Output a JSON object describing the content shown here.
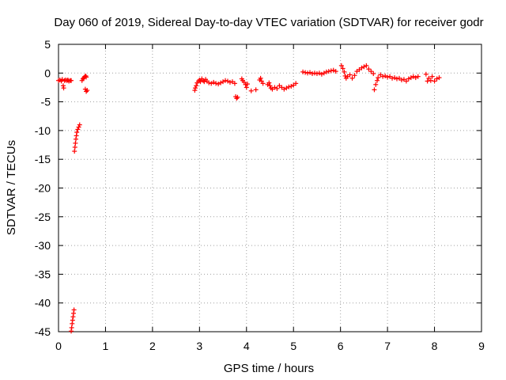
{
  "chart_data": {
    "type": "scatter",
    "title": "Day 060 of 2019, Sidereal Day-to-day VTEC variation (SDTVAR) for receiver godr",
    "xlabel": "GPS time / hours",
    "ylabel": "SDTVAR / TECUs",
    "xlim": [
      0,
      9
    ],
    "ylim": [
      -45,
      5
    ],
    "xticks": [
      0,
      1,
      2,
      3,
      4,
      5,
      6,
      7,
      8,
      9
    ],
    "yticks": [
      5,
      0,
      -5,
      -10,
      -15,
      -20,
      -25,
      -30,
      -35,
      -40,
      -45
    ],
    "grid": true,
    "marker": "plus",
    "color": "#ff0000",
    "series": [
      {
        "name": "SDTVAR",
        "points": [
          [
            0.0,
            -1.3
          ],
          [
            0.03,
            -1.2
          ],
          [
            0.06,
            -1.4
          ],
          [
            0.08,
            -1.1
          ],
          [
            0.1,
            -2.2
          ],
          [
            0.11,
            -2.6
          ],
          [
            0.13,
            -1.3
          ],
          [
            0.15,
            -1.2
          ],
          [
            0.18,
            -1.3
          ],
          [
            0.2,
            -1.2
          ],
          [
            0.22,
            -1.4
          ],
          [
            0.25,
            -1.3
          ],
          [
            0.27,
            -1.3
          ],
          [
            0.27,
            -44.9
          ],
          [
            0.28,
            -44.3
          ],
          [
            0.29,
            -43.6
          ],
          [
            0.3,
            -43.0
          ],
          [
            0.31,
            -42.4
          ],
          [
            0.32,
            -41.8
          ],
          [
            0.33,
            -41.2
          ],
          [
            0.34,
            -13.6
          ],
          [
            0.35,
            -12.9
          ],
          [
            0.36,
            -12.2
          ],
          [
            0.37,
            -11.5
          ],
          [
            0.38,
            -10.9
          ],
          [
            0.39,
            -10.3
          ],
          [
            0.41,
            -9.8
          ],
          [
            0.43,
            -9.4
          ],
          [
            0.45,
            -9.0
          ],
          [
            0.5,
            -1.3
          ],
          [
            0.52,
            -1.0
          ],
          [
            0.54,
            -0.8
          ],
          [
            0.56,
            -0.6
          ],
          [
            0.58,
            -0.5
          ],
          [
            0.59,
            -0.7
          ],
          [
            0.57,
            -2.8
          ],
          [
            0.59,
            -3.2
          ],
          [
            0.61,
            -3.0
          ],
          [
            2.9,
            -3.0
          ],
          [
            2.91,
            -2.6
          ],
          [
            2.93,
            -2.2
          ],
          [
            2.95,
            -1.7
          ],
          [
            2.98,
            -1.4
          ],
          [
            3.0,
            -1.2
          ],
          [
            3.02,
            -1.5
          ],
          [
            3.05,
            -1.0
          ],
          [
            3.08,
            -1.3
          ],
          [
            3.1,
            -1.5
          ],
          [
            3.13,
            -1.1
          ],
          [
            3.16,
            -1.4
          ],
          [
            3.2,
            -1.7
          ],
          [
            3.25,
            -1.8
          ],
          [
            3.3,
            -1.6
          ],
          [
            3.35,
            -1.8
          ],
          [
            3.4,
            -1.9
          ],
          [
            3.45,
            -1.7
          ],
          [
            3.5,
            -1.5
          ],
          [
            3.55,
            -1.3
          ],
          [
            3.6,
            -1.4
          ],
          [
            3.65,
            -1.6
          ],
          [
            3.7,
            -1.5
          ],
          [
            3.75,
            -1.8
          ],
          [
            3.77,
            -4.1
          ],
          [
            3.79,
            -4.4
          ],
          [
            3.81,
            -4.2
          ],
          [
            3.9,
            -1.0
          ],
          [
            3.92,
            -1.3
          ],
          [
            3.95,
            -1.6
          ],
          [
            3.98,
            -2.0
          ],
          [
            4.0,
            -2.5
          ],
          [
            4.02,
            -1.9
          ],
          [
            4.1,
            -3.1
          ],
          [
            4.2,
            -2.9
          ],
          [
            4.28,
            -1.2
          ],
          [
            4.3,
            -0.9
          ],
          [
            4.32,
            -1.4
          ],
          [
            4.35,
            -1.8
          ],
          [
            4.45,
            -2.0
          ],
          [
            4.48,
            -1.7
          ],
          [
            4.5,
            -2.2
          ],
          [
            4.52,
            -2.6
          ],
          [
            4.55,
            -2.8
          ],
          [
            4.6,
            -2.5
          ],
          [
            4.65,
            -2.7
          ],
          [
            4.7,
            -2.2
          ],
          [
            4.75,
            -2.5
          ],
          [
            4.8,
            -2.8
          ],
          [
            4.85,
            -2.6
          ],
          [
            4.9,
            -2.4
          ],
          [
            4.95,
            -2.3
          ],
          [
            5.0,
            -2.1
          ],
          [
            5.05,
            -1.8
          ],
          [
            5.2,
            0.2
          ],
          [
            5.25,
            0.1
          ],
          [
            5.3,
            0.0
          ],
          [
            5.35,
            0.1
          ],
          [
            5.4,
            -0.1
          ],
          [
            5.45,
            0.0
          ],
          [
            5.5,
            -0.1
          ],
          [
            5.55,
            0.0
          ],
          [
            5.6,
            -0.2
          ],
          [
            5.65,
            0.0
          ],
          [
            5.7,
            0.2
          ],
          [
            5.75,
            0.3
          ],
          [
            5.8,
            0.4
          ],
          [
            5.85,
            0.5
          ],
          [
            5.9,
            0.3
          ],
          [
            6.02,
            1.3
          ],
          [
            6.05,
            0.8
          ],
          [
            6.08,
            0.2
          ],
          [
            6.1,
            -0.5
          ],
          [
            6.12,
            -0.9
          ],
          [
            6.15,
            -0.6
          ],
          [
            6.2,
            -0.3
          ],
          [
            6.25,
            -0.9
          ],
          [
            6.3,
            -0.4
          ],
          [
            6.35,
            0.3
          ],
          [
            6.4,
            0.6
          ],
          [
            6.45,
            0.9
          ],
          [
            6.5,
            1.1
          ],
          [
            6.55,
            1.3
          ],
          [
            6.6,
            0.7
          ],
          [
            6.65,
            0.3
          ],
          [
            6.7,
            -0.1
          ],
          [
            6.72,
            -2.9
          ],
          [
            6.75,
            -2.0
          ],
          [
            6.78,
            -1.3
          ],
          [
            6.8,
            -0.8
          ],
          [
            6.85,
            -0.3
          ],
          [
            6.9,
            -0.6
          ],
          [
            6.95,
            -0.5
          ],
          [
            7.0,
            -0.7
          ],
          [
            7.05,
            -0.6
          ],
          [
            7.1,
            -0.9
          ],
          [
            7.15,
            -0.8
          ],
          [
            7.2,
            -1.0
          ],
          [
            7.25,
            -0.9
          ],
          [
            7.3,
            -1.2
          ],
          [
            7.35,
            -1.1
          ],
          [
            7.4,
            -1.4
          ],
          [
            7.45,
            -1.0
          ],
          [
            7.5,
            -0.8
          ],
          [
            7.55,
            -0.6
          ],
          [
            7.6,
            -0.8
          ],
          [
            7.65,
            -0.6
          ],
          [
            7.82,
            -0.2
          ],
          [
            7.85,
            -1.4
          ],
          [
            7.88,
            -0.9
          ],
          [
            7.92,
            -1.3
          ],
          [
            7.95,
            -0.6
          ],
          [
            8.0,
            -1.4
          ],
          [
            8.05,
            -1.0
          ],
          [
            8.1,
            -0.8
          ]
        ]
      }
    ]
  }
}
